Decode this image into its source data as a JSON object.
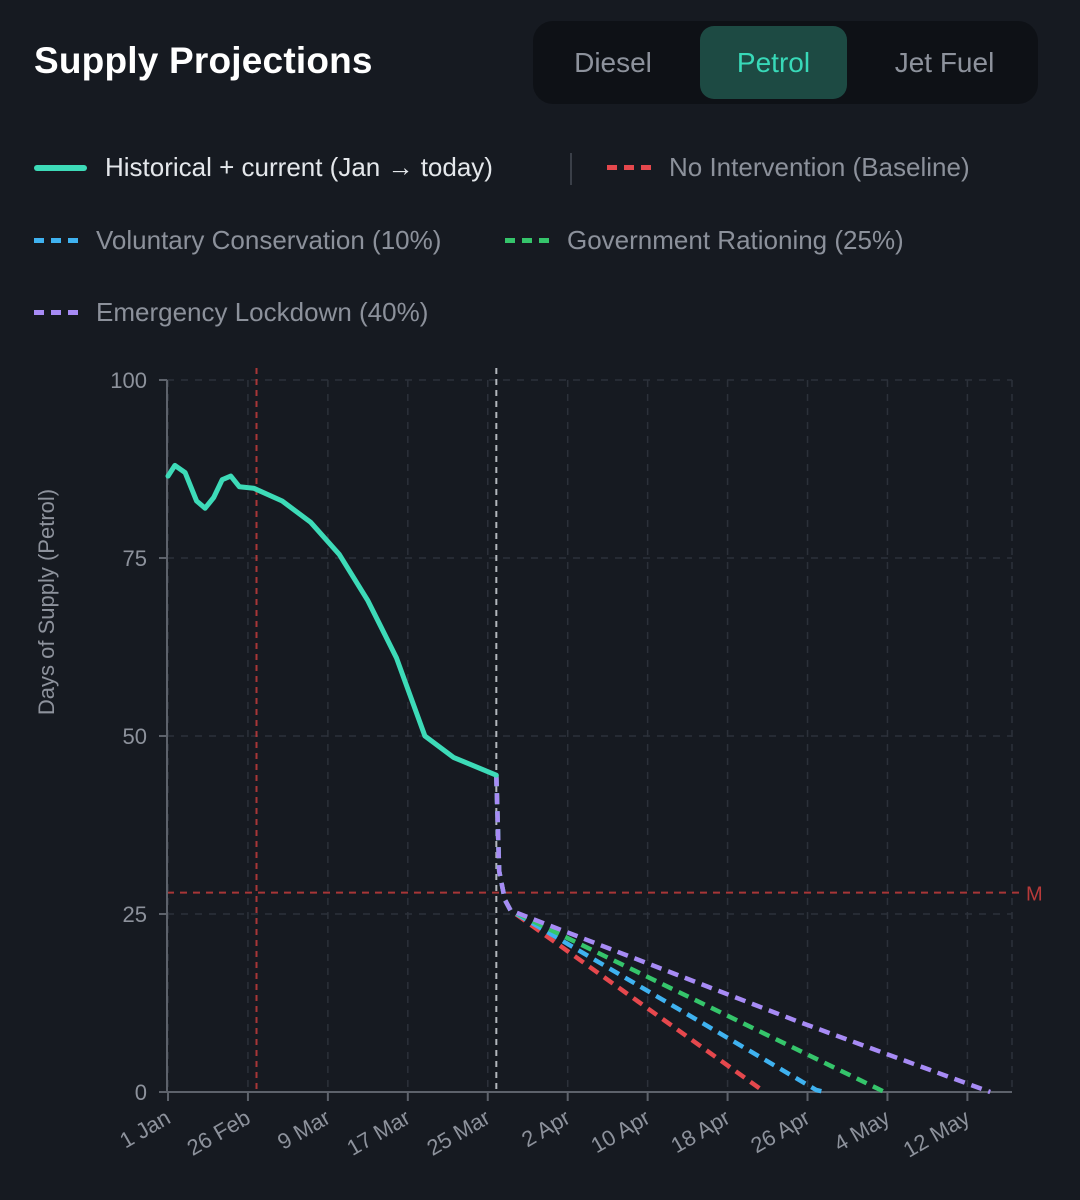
{
  "header": {
    "title": "Supply Projections",
    "tabs": [
      {
        "label": "Diesel",
        "selected": false
      },
      {
        "label": "Petrol",
        "selected": true
      },
      {
        "label": "Jet Fuel",
        "selected": false
      }
    ]
  },
  "legend": {
    "historical": "Historical + current (Jan → today)",
    "baseline": "No Intervention (Baseline)",
    "voluntary": "Voluntary Conservation (10%)",
    "rationing": "Government Rationing (25%)",
    "lockdown": "Emergency Lockdown (40%)"
  },
  "colors": {
    "historical": "#3ddbb8",
    "baseline": "#e5484d",
    "voluntary": "#3fb2f0",
    "rationing": "#35c56b",
    "lockdown": "#a78bf5",
    "threshold": "#b83a3a",
    "today_line": "#c4c8ce"
  },
  "chart_data": {
    "type": "line",
    "ylabel": "Days of Supply (Petrol)",
    "xlabel": "",
    "ylim": [
      0,
      100
    ],
    "yticks": [
      0,
      25,
      50,
      75,
      100
    ],
    "xlim_days": [
      0,
      140
    ],
    "xticks": [
      {
        "label": "1 Jan",
        "day": 0
      },
      {
        "label": "26 Feb",
        "day": 14
      },
      {
        "label": "9 Mar",
        "day": 28
      },
      {
        "label": "17 Mar",
        "day": 42
      },
      {
        "label": "25 Mar",
        "day": 56
      },
      {
        "label": "2 Apr",
        "day": 70
      },
      {
        "label": "10 Apr",
        "day": 84
      },
      {
        "label": "18 Apr",
        "day": 98
      },
      {
        "label": "26 Apr",
        "day": 112
      },
      {
        "label": "4 May",
        "day": 126
      },
      {
        "label": "12 May",
        "day": 140
      }
    ],
    "grid": true,
    "x_axis_note": "spacing between date labels as drawn on axis",
    "series": [
      {
        "name": "Historical + current (Jan → today)",
        "style": "solid",
        "points": [
          [
            0,
            86.5
          ],
          [
            1.2,
            88
          ],
          [
            3,
            87
          ],
          [
            5,
            83
          ],
          [
            6.5,
            82
          ],
          [
            8,
            83.5
          ],
          [
            9.5,
            86
          ],
          [
            11,
            86.5
          ],
          [
            12.5,
            85
          ],
          [
            15,
            84.8
          ],
          [
            20,
            83
          ],
          [
            25,
            80
          ],
          [
            30,
            75.5
          ],
          [
            35,
            69
          ],
          [
            40,
            61
          ],
          [
            45,
            50
          ],
          [
            50,
            47
          ],
          [
            57.5,
            44.5
          ]
        ]
      },
      {
        "name": "No Intervention (Baseline)",
        "style": "dashed",
        "points": [
          [
            57.5,
            44.5
          ],
          [
            58,
            31
          ],
          [
            59,
            27
          ],
          [
            60,
            25.5
          ],
          [
            104.5,
            0
          ]
        ]
      },
      {
        "name": "Voluntary Conservation (10%)",
        "style": "dashed",
        "points": [
          [
            57.5,
            44.5
          ],
          [
            58,
            31
          ],
          [
            59,
            27
          ],
          [
            60,
            25.5
          ],
          [
            113.5,
            0.3
          ],
          [
            115,
            0
          ]
        ]
      },
      {
        "name": "Government Rationing (25%)",
        "style": "dashed",
        "points": [
          [
            57.5,
            44.5
          ],
          [
            58,
            31
          ],
          [
            59,
            27
          ],
          [
            60,
            25.5
          ],
          [
            125.5,
            0
          ]
        ]
      },
      {
        "name": "Emergency Lockdown (40%)",
        "style": "dashed",
        "points": [
          [
            57.5,
            44.5
          ],
          [
            58,
            31
          ],
          [
            59,
            27
          ],
          [
            60,
            25.5
          ],
          [
            110,
            10
          ],
          [
            144,
            0
          ]
        ]
      }
    ],
    "annotations": [
      {
        "type": "vline",
        "day": 15.5,
        "color": "threshold",
        "style": "dashed"
      },
      {
        "type": "vline",
        "day": 57.5,
        "color": "today_line",
        "style": "dashed"
      },
      {
        "type": "hline",
        "value": 28,
        "color": "threshold",
        "style": "dashed",
        "label": "M"
      }
    ]
  }
}
